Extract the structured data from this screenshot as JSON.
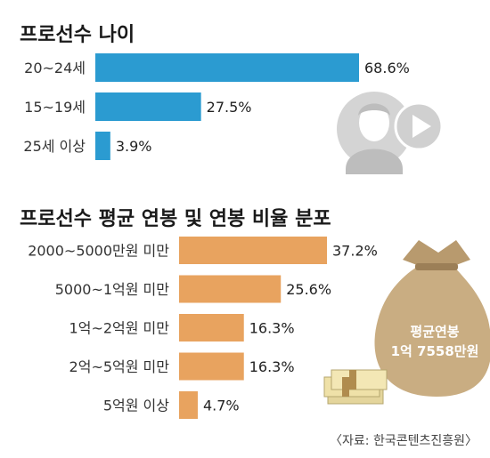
{
  "source": "〈자료: 한국콘텐츠진흥원〉",
  "average_badge": {
    "line1": "평균연봉",
    "line2": "1억 7558만원"
  },
  "icons": {
    "person": "person-avatar-icon",
    "play": "play-button-icon",
    "money_bag": "money-bag-icon",
    "cash_stack": "cash-stack-icon"
  },
  "colors": {
    "age_bars": "#2b9bd1",
    "salary_bars": "#e8a35f",
    "bag": "#c9ad82",
    "icon_gray": "#cccccc"
  },
  "chart_data": [
    {
      "type": "bar",
      "orientation": "horizontal",
      "title": "프로선수 나이",
      "categories": [
        "20~24세",
        "15~19세",
        "25세 이상"
      ],
      "values": [
        68.6,
        27.5,
        3.9
      ],
      "value_labels": [
        "68.6%",
        "27.5%",
        "3.9%"
      ],
      "unit": "%"
    },
    {
      "type": "bar",
      "orientation": "horizontal",
      "title": "프로선수 평균 연봉 및 연봉 비율 분포",
      "categories": [
        "2000~5000만원 미만",
        "5000~1억원 미만",
        "1억~2억원 미만",
        "2억~5억원 미만",
        "5억원 이상"
      ],
      "values": [
        37.2,
        25.6,
        16.3,
        16.3,
        4.7
      ],
      "value_labels": [
        "37.2%",
        "25.6%",
        "16.3%",
        "16.3%",
        "4.7%"
      ],
      "unit": "%"
    }
  ]
}
